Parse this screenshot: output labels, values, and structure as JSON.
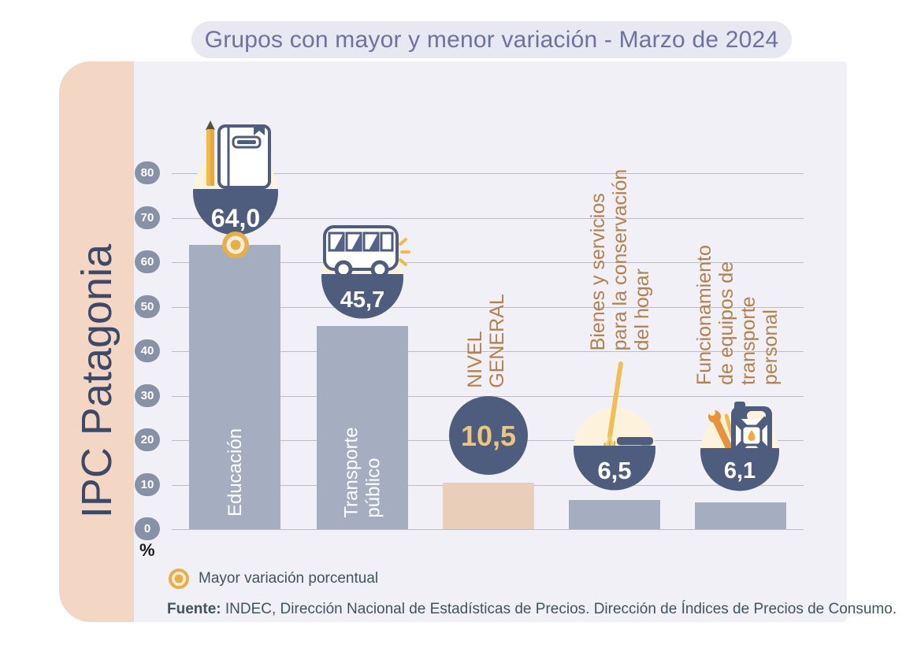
{
  "header": {
    "title": "Grupos con mayor y menor variación - Marzo de 2024"
  },
  "brand": {
    "label": "IPC Patagonia"
  },
  "axis": {
    "unit": "%",
    "ticks": [
      "80",
      "70",
      "60",
      "50",
      "40",
      "30",
      "20",
      "10",
      "0"
    ]
  },
  "legend": {
    "label": "Mayor variación porcentual"
  },
  "source": {
    "prefix": "Fuente:",
    "text": " INDEC, Dirección Nacional de Estadísticas de Precios. Dirección de Índices de Precios de Consumo."
  },
  "bars": [
    {
      "label": "Educación",
      "value_label": "64,0",
      "icon": "pencil-notebook"
    },
    {
      "label": "Transporte\npúblico",
      "value_label": "45,7",
      "icon": "bus"
    },
    {
      "label": "NIVEL\nGENERAL",
      "value_label": "10,5",
      "icon": "none"
    },
    {
      "label": "Bienes y servicios\npara la conservación\ndel hogar",
      "value_label": "6,5",
      "icon": "mop-bucket"
    },
    {
      "label": "Funcionamiento\nde equipos de\ntransporte personal",
      "value_label": "6,1",
      "icon": "fuel-can-wrench"
    }
  ],
  "chart_data": {
    "type": "bar",
    "title": "Grupos con mayor y menor variación - Marzo de 2024",
    "categories": [
      "Educación",
      "Transporte público",
      "NIVEL GENERAL",
      "Bienes y servicios para la conservación del hogar",
      "Funcionamiento de equipos de transporte personal"
    ],
    "values": [
      64.0,
      45.7,
      10.5,
      6.5,
      6.1
    ],
    "value_labels": [
      "64,0",
      "45,7",
      "10,5",
      "6,5",
      "6,1"
    ],
    "ylabel": "%",
    "ylim": [
      0,
      80
    ],
    "ytick_step": 10,
    "grid": true,
    "legend_position": "bottom-left",
    "highlighted_max_category": "Educación",
    "bar_colors": [
      "#a4aec0",
      "#a4aec0",
      "#e9cfba",
      "#a4aec0",
      "#a4aec0"
    ],
    "colors": {
      "bar_default": "#a4aec0",
      "bar_general_level": "#e9cfba",
      "bubble_navy": "#4e5c7d",
      "bubble_cream": "#fdf3dd",
      "accent_gold": "#e9ae4a",
      "label_tan": "#b2814e",
      "card_bg": "#f1f0f6",
      "band_peach": "#f4d6c4"
    }
  }
}
